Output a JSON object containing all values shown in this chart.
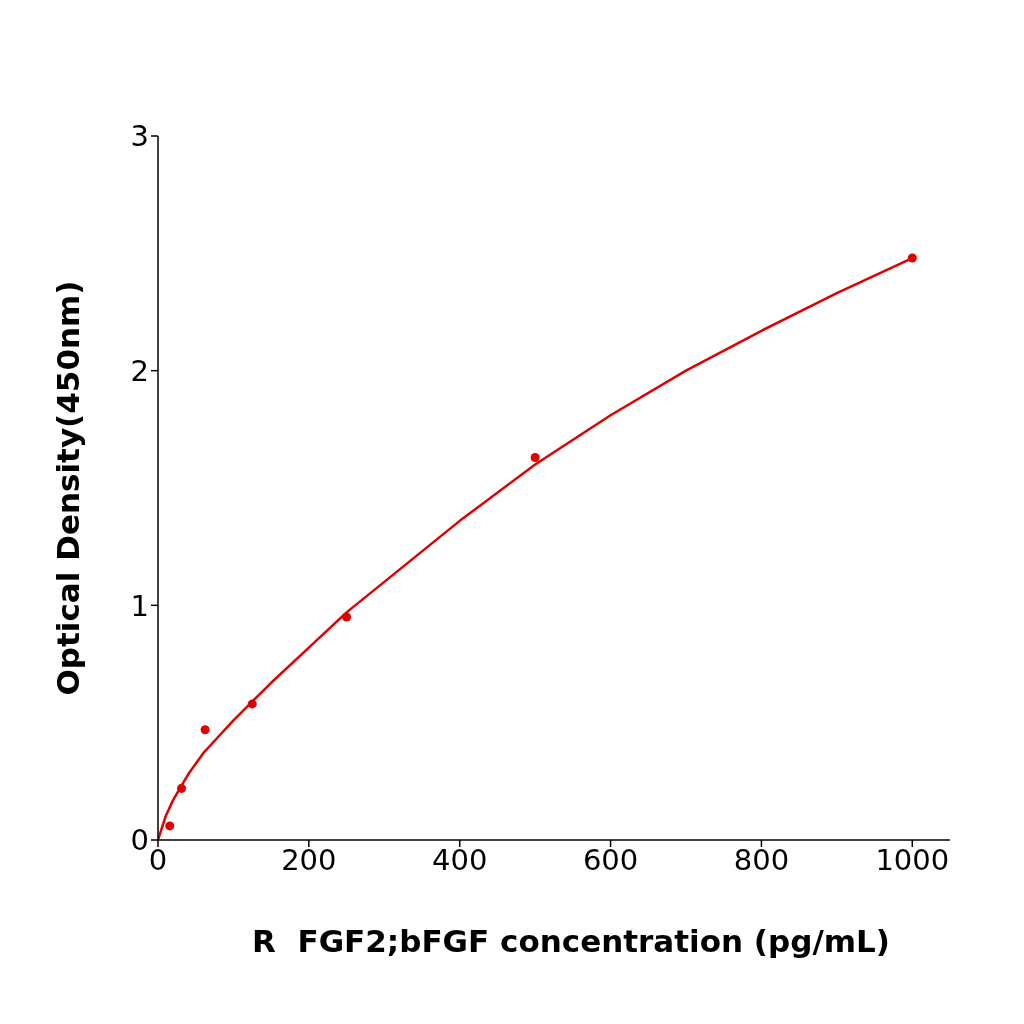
{
  "chart_data": {
    "type": "scatter",
    "xlabel": "R  FGF2;bFGF concentration (pg/mL)",
    "ylabel": "Optical Density(450nm)",
    "xlim": [
      0,
      1050
    ],
    "xticks": [
      0,
      200,
      400,
      600,
      800,
      1000
    ],
    "ylim": [
      0,
      3
    ],
    "yticks": [
      0,
      1,
      2,
      3
    ],
    "grid": false,
    "series": [
      {
        "color": "#e00000",
        "marker": "circle",
        "x": [
          15.6,
          31.25,
          62.5,
          125,
          250,
          500,
          1000
        ],
        "values": [
          0.06,
          0.22,
          0.47,
          0.58,
          0.95,
          1.63,
          2.48
        ]
      },
      {
        "type": "line",
        "color": "#e00000",
        "marker": "none",
        "line_style": "solid",
        "x": [
          0,
          10,
          20,
          40,
          60,
          80,
          100,
          150,
          200,
          250,
          300,
          400,
          500,
          600,
          700,
          800,
          900,
          1000
        ],
        "values": [
          0,
          0.1,
          0.17,
          0.28,
          0.37,
          0.44,
          0.51,
          0.67,
          0.82,
          0.97,
          1.1,
          1.36,
          1.6,
          1.81,
          2.0,
          2.17,
          2.33,
          2.48
        ]
      }
    ]
  }
}
